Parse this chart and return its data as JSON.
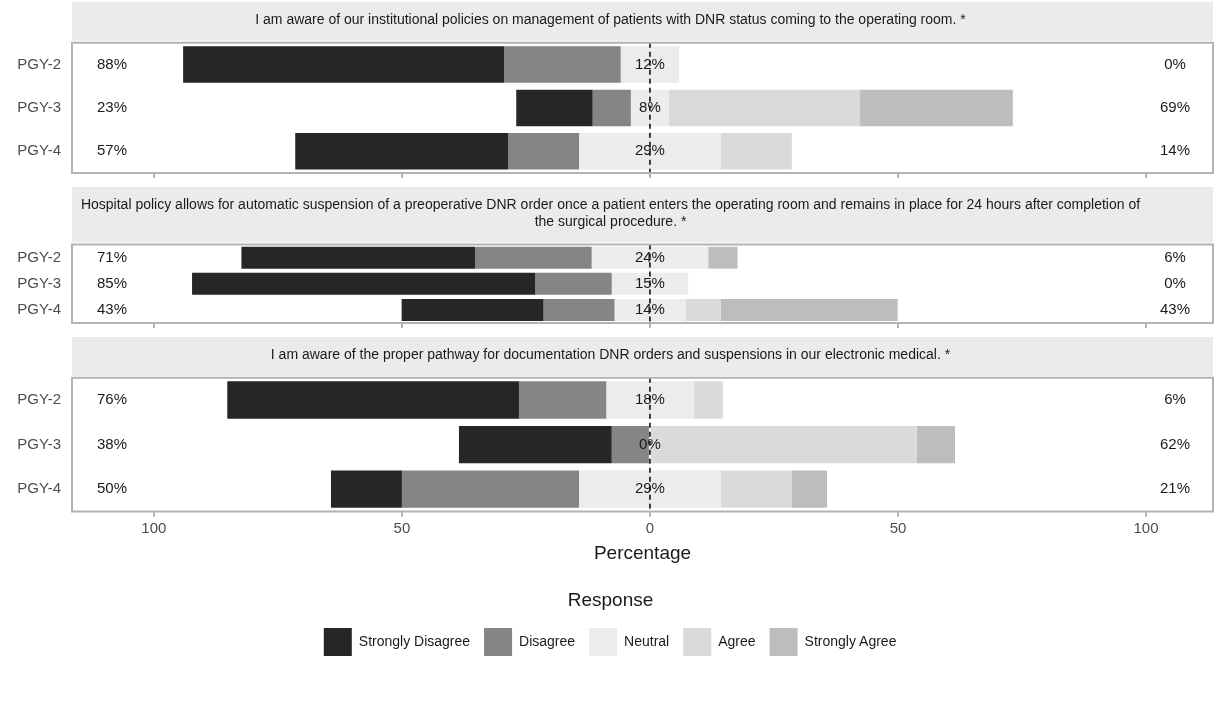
{
  "chart_data": [
    {
      "type": "bar",
      "orientation": "horizontal",
      "title": "I am aware of our institutional policies on management of patients with DNR status coming to the operating room. *",
      "categories": [
        "PGY-2",
        "PGY-3",
        "PGY-4"
      ],
      "xlim": [
        -116.5,
        113.5
      ],
      "xticks": [
        {
          "value": -100,
          "label": null
        },
        {
          "value": -50,
          "label": null
        },
        {
          "value": 0,
          "label": null
        },
        {
          "value": 50,
          "label": null
        },
        {
          "value": 100,
          "label": null
        }
      ],
      "tick_labels": "y",
      "ref_lines": [
        {
          "axis": "x",
          "value": 0,
          "color": "#000000",
          "line_style": "dashed"
        }
      ],
      "annotations": [
        "88%",
        "12%",
        "0%",
        "23%",
        "8%",
        "69%",
        "57%",
        "29%",
        "14%"
      ],
      "series": [
        {
          "color": "#262626",
          "values": [
            64.7,
            15.4,
            42.9
          ],
          "base": [
            -94.1,
            -26.95,
            -71.5
          ]
        },
        {
          "color": "#858585",
          "values": [
            23.5,
            7.7,
            14.3
          ],
          "base": [
            -29.4,
            -11.55,
            -28.6
          ]
        },
        {
          "color": "#ececec",
          "values": [
            11.8,
            7.7,
            28.6
          ],
          "base": [
            -5.9,
            -3.85,
            -14.3
          ]
        },
        {
          "color": "#dadada",
          "values": [
            0,
            38.5,
            14.3
          ],
          "base": [
            null,
            3.85,
            14.3
          ]
        },
        {
          "color": "#bdbdbd",
          "values": [
            0,
            30.8,
            0
          ],
          "base": [
            null,
            42.35,
            null
          ]
        }
      ]
    },
    {
      "type": "bar",
      "orientation": "horizontal",
      "title": "Hospital policy allows for automatic suspension of a preoperative DNR order once a patient enters the operating room and remains in place for 24 hours after completion of the surgical procedure. *",
      "categories": [
        "PGY-2",
        "PGY-3",
        "PGY-4"
      ],
      "xlim": [
        -116.5,
        113.5
      ],
      "xticks": [
        {
          "value": -100,
          "label": null
        },
        {
          "value": -50,
          "label": null
        },
        {
          "value": 0,
          "label": null
        },
        {
          "value": 50,
          "label": null
        },
        {
          "value": 100,
          "label": null
        }
      ],
      "tick_labels": "y",
      "ref_lines": [
        {
          "axis": "x",
          "value": 0,
          "color": "#000000",
          "line_style": "dashed"
        }
      ],
      "annotations": [
        "71%",
        "24%",
        "6%",
        "85%",
        "15%",
        "0%",
        "43%",
        "14%",
        "43%"
      ],
      "series": [
        {
          "color": "#262626",
          "values": [
            47.1,
            69.2,
            28.6
          ],
          "base": [
            -82.35,
            -92.3,
            -50.05
          ]
        },
        {
          "color": "#858585",
          "values": [
            23.5,
            15.4,
            14.3
          ],
          "base": [
            -35.25,
            -23.1,
            -21.45
          ]
        },
        {
          "color": "#ececec",
          "values": [
            23.5,
            15.4,
            14.3
          ],
          "base": [
            -11.75,
            -7.7,
            -7.15
          ]
        },
        {
          "color": "#dadada",
          "values": [
            0,
            0,
            7.1
          ],
          "base": [
            null,
            null,
            7.15
          ]
        },
        {
          "color": "#bdbdbd",
          "values": [
            5.9,
            0,
            35.7
          ],
          "base": [
            11.75,
            null,
            14.25
          ]
        }
      ]
    },
    {
      "type": "bar",
      "orientation": "horizontal",
      "title": "I am aware of the proper pathway for documentation DNR orders and suspensions in our electronic medical. *",
      "xlabel": "Percentage",
      "legend": "bottom",
      "legend_title": "Response",
      "categories": [
        "PGY-2",
        "PGY-3",
        "PGY-4"
      ],
      "xlim": [
        -116.5,
        113.5
      ],
      "xticks": [
        {
          "value": -100,
          "label": "100"
        },
        {
          "value": -50,
          "label": "50"
        },
        0,
        50,
        100
      ],
      "ref_lines": [
        {
          "axis": "x",
          "value": 0,
          "color": "#000000",
          "line_style": "dashed"
        }
      ],
      "annotations": [
        "76%",
        "18%",
        "6%",
        "38%",
        "0%",
        "62%",
        "50%",
        "29%",
        "21%"
      ],
      "series": [
        {
          "name": "Strongly Disagree",
          "color": "#262626",
          "values": [
            58.8,
            30.8,
            14.3
          ],
          "base": [
            -85.2,
            -38.5,
            -64.3
          ]
        },
        {
          "name": "Disagree",
          "color": "#858585",
          "values": [
            17.6,
            7.7,
            35.7
          ],
          "base": [
            -26.4,
            -7.7,
            -50
          ]
        },
        {
          "name": "Neutral",
          "color": "#ececec",
          "values": [
            17.6,
            0,
            28.6
          ],
          "base": [
            -8.8,
            null,
            -14.3
          ]
        },
        {
          "name": "Agree",
          "color": "#dadada",
          "values": [
            5.9,
            53.8,
            14.3
          ],
          "base": [
            8.8,
            0,
            14.3
          ]
        },
        {
          "name": "Strongly Agree",
          "color": "#bdbdbd",
          "values": [
            0,
            7.7,
            7.1
          ],
          "base": [
            null,
            53.8,
            28.6
          ]
        }
      ]
    }
  ]
}
